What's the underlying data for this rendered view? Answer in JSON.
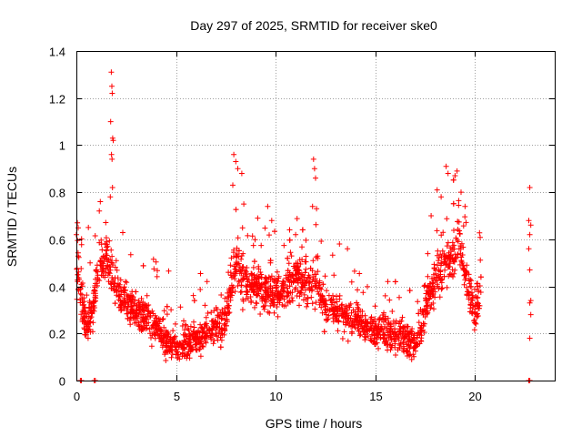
{
  "chart_data": {
    "type": "scatter",
    "title": "Day 297 of 2025, SRMTID for receiver ske0",
    "xlabel": "GPS time / hours",
    "ylabel": "SRMTID / TECUs",
    "xlim": [
      0,
      24
    ],
    "ylim": [
      0,
      1.4
    ],
    "xticks": [
      "0",
      "5",
      "10",
      "15",
      "20"
    ],
    "yticks": [
      "0",
      "0.2",
      "0.4",
      "0.6",
      "0.8",
      "1",
      "1.2",
      "1.4"
    ],
    "xtick_values": [
      0,
      5,
      10,
      15,
      20
    ],
    "ytick_values": [
      0,
      0.2,
      0.4,
      0.6,
      0.8,
      1.0,
      1.2,
      1.4
    ],
    "grid": true,
    "marker": "+",
    "color": "#ff0000",
    "series": [
      {
        "name": "SRMTID",
        "profile": [
          [
            0.0,
            0.42
          ],
          [
            0.1,
            0.48
          ],
          [
            0.3,
            0.32
          ],
          [
            0.5,
            0.22
          ],
          [
            0.8,
            0.3
          ],
          [
            1.0,
            0.4
          ],
          [
            1.3,
            0.55
          ],
          [
            1.6,
            0.5
          ],
          [
            1.8,
            0.45
          ],
          [
            2.2,
            0.36
          ],
          [
            2.6,
            0.32
          ],
          [
            3.0,
            0.3
          ],
          [
            3.5,
            0.28
          ],
          [
            4.0,
            0.22
          ],
          [
            4.5,
            0.17
          ],
          [
            5.0,
            0.15
          ],
          [
            5.5,
            0.16
          ],
          [
            6.0,
            0.18
          ],
          [
            6.5,
            0.2
          ],
          [
            7.0,
            0.22
          ],
          [
            7.5,
            0.28
          ],
          [
            8.0,
            0.5
          ],
          [
            8.5,
            0.42
          ],
          [
            9.0,
            0.4
          ],
          [
            9.5,
            0.38
          ],
          [
            10.0,
            0.36
          ],
          [
            10.5,
            0.4
          ],
          [
            11.0,
            0.45
          ],
          [
            11.5,
            0.4
          ],
          [
            12.0,
            0.42
          ],
          [
            12.5,
            0.32
          ],
          [
            13.0,
            0.3
          ],
          [
            13.5,
            0.28
          ],
          [
            14.0,
            0.26
          ],
          [
            14.5,
            0.22
          ],
          [
            15.0,
            0.22
          ],
          [
            15.5,
            0.2
          ],
          [
            16.0,
            0.2
          ],
          [
            16.5,
            0.18
          ],
          [
            17.0,
            0.14
          ],
          [
            17.3,
            0.22
          ],
          [
            17.7,
            0.38
          ],
          [
            18.2,
            0.45
          ],
          [
            18.7,
            0.5
          ],
          [
            19.2,
            0.58
          ],
          [
            19.6,
            0.42
          ],
          [
            20.0,
            0.28
          ],
          [
            20.3,
            0.38
          ]
        ],
        "spread": 0.09,
        "count": 2300,
        "seed": 297
      }
    ],
    "outliers": [
      {
        "x": 1.75,
        "y": 1.31
      },
      {
        "x": 1.78,
        "y": 1.25
      },
      {
        "x": 1.8,
        "y": 1.22
      },
      {
        "x": 1.72,
        "y": 1.1
      },
      {
        "x": 1.82,
        "y": 1.03
      },
      {
        "x": 1.85,
        "y": 1.02
      },
      {
        "x": 1.76,
        "y": 0.96
      },
      {
        "x": 1.79,
        "y": 0.94
      },
      {
        "x": 1.81,
        "y": 0.82
      },
      {
        "x": 1.7,
        "y": 0.78
      },
      {
        "x": 1.2,
        "y": 0.76
      },
      {
        "x": 1.15,
        "y": 0.72
      },
      {
        "x": 7.9,
        "y": 0.96
      },
      {
        "x": 8.0,
        "y": 0.93
      },
      {
        "x": 8.1,
        "y": 0.9
      },
      {
        "x": 8.3,
        "y": 0.88
      },
      {
        "x": 7.85,
        "y": 0.83
      },
      {
        "x": 8.4,
        "y": 0.75
      },
      {
        "x": 9.1,
        "y": 0.69
      },
      {
        "x": 9.6,
        "y": 0.74
      },
      {
        "x": 9.8,
        "y": 0.68
      },
      {
        "x": 10.7,
        "y": 0.64
      },
      {
        "x": 11.0,
        "y": 0.62
      },
      {
        "x": 11.9,
        "y": 0.94
      },
      {
        "x": 11.95,
        "y": 0.9
      },
      {
        "x": 12.0,
        "y": 0.86
      },
      {
        "x": 11.85,
        "y": 0.74
      },
      {
        "x": 12.05,
        "y": 0.73
      },
      {
        "x": 13.2,
        "y": 0.58
      },
      {
        "x": 13.6,
        "y": 0.56
      },
      {
        "x": 17.8,
        "y": 0.7
      },
      {
        "x": 18.1,
        "y": 0.81
      },
      {
        "x": 18.3,
        "y": 0.78
      },
      {
        "x": 18.55,
        "y": 0.91
      },
      {
        "x": 18.65,
        "y": 0.88
      },
      {
        "x": 19.0,
        "y": 0.87
      },
      {
        "x": 19.1,
        "y": 0.89
      },
      {
        "x": 19.3,
        "y": 0.8
      },
      {
        "x": 19.5,
        "y": 0.74
      },
      {
        "x": 0.05,
        "y": 0.67
      },
      {
        "x": 0.0,
        "y": 0.62
      },
      {
        "x": 0.6,
        "y": 0.65
      },
      {
        "x": 22.75,
        "y": 0.82
      },
      {
        "x": 22.7,
        "y": 0.68
      },
      {
        "x": 22.8,
        "y": 0.66
      },
      {
        "x": 22.75,
        "y": 0.62
      },
      {
        "x": 22.7,
        "y": 0.56
      },
      {
        "x": 22.75,
        "y": 0.47
      },
      {
        "x": 22.8,
        "y": 0.34
      },
      {
        "x": 22.75,
        "y": 0.33
      },
      {
        "x": 22.8,
        "y": 0.28
      },
      {
        "x": 22.75,
        "y": 0.18
      },
      {
        "x": 0.2,
        "y": 0.0
      },
      {
        "x": 0.25,
        "y": 0.0
      },
      {
        "x": 0.9,
        "y": 0.0
      },
      {
        "x": 0.95,
        "y": 0.0
      },
      {
        "x": 22.7,
        "y": 0.0
      },
      {
        "x": 22.75,
        "y": 0.0
      }
    ]
  }
}
